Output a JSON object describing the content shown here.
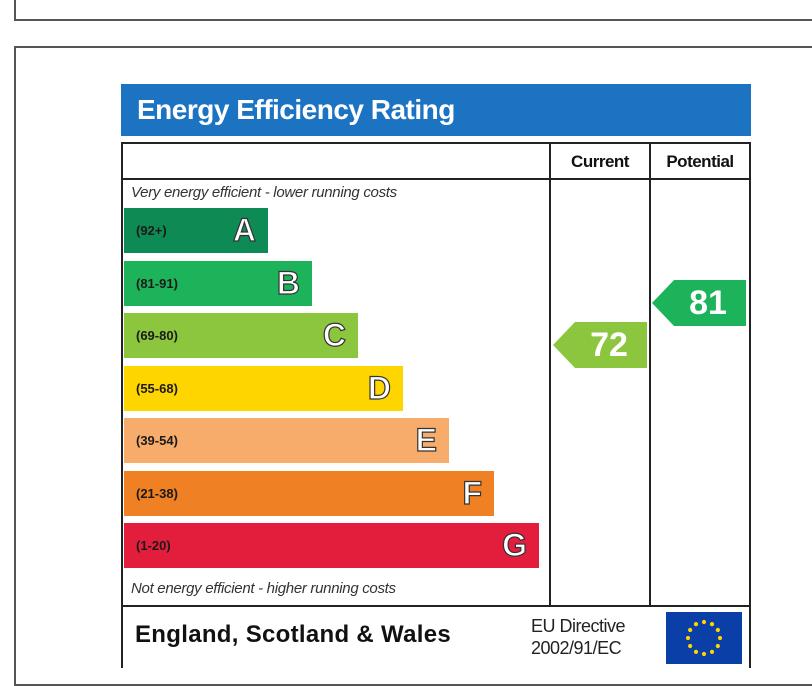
{
  "title": "Energy Efficiency Rating",
  "columns": {
    "current": "Current",
    "potential": "Potential"
  },
  "top_note": "Very energy efficient - lower running costs",
  "bottom_note": "Not energy efficient - higher running costs",
  "bands": [
    {
      "range": "(92+)",
      "letter": "A",
      "color": "#0e8a55"
    },
    {
      "range": "(81-91)",
      "letter": "B",
      "color": "#1cb35a"
    },
    {
      "range": "(69-80)",
      "letter": "C",
      "color": "#8cc63e"
    },
    {
      "range": "(55-68)",
      "letter": "D",
      "color": "#ffd500"
    },
    {
      "range": "(39-54)",
      "letter": "E",
      "color": "#f7ac6b"
    },
    {
      "range": "(21-38)",
      "letter": "F",
      "color": "#ef8023"
    },
    {
      "range": "(1-20)",
      "letter": "G",
      "color": "#e31d3c"
    }
  ],
  "current_rating": {
    "value": "72",
    "color": "#8cc63e"
  },
  "potential_rating": {
    "value": "81",
    "color": "#1cb35a"
  },
  "footer": {
    "region": "England, Scotland & Wales",
    "directive_line1": "EU Directive",
    "directive_line2": "2002/91/EC",
    "flag_icon": "eu-flag-icon",
    "flag_color": "#0a3fa8",
    "star_color": "#ffd500"
  }
}
